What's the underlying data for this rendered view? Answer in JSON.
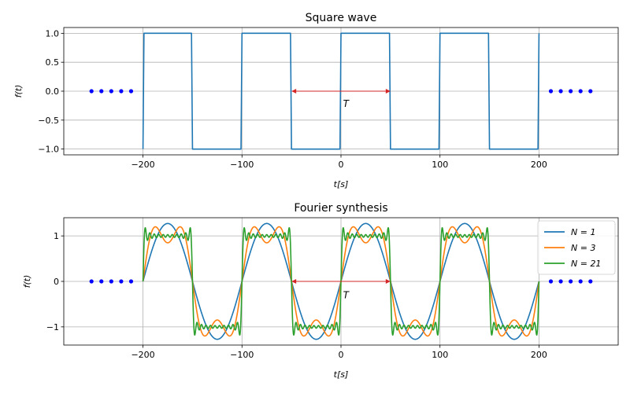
{
  "chart_data": [
    {
      "type": "line",
      "title": "Square wave",
      "xlabel": "t[s]",
      "ylabel": "f(t)",
      "xlim": [
        -280,
        280
      ],
      "ylim": [
        -1.1,
        1.1
      ],
      "xticks": [
        -200,
        -100,
        0,
        100,
        200
      ],
      "xtick_labels": [
        "−200",
        "−100",
        "0",
        "100",
        "200"
      ],
      "yticks": [
        -1.0,
        -0.5,
        0.0,
        0.5,
        1.0
      ],
      "ytick_labels": [
        "−1.0",
        "−0.5",
        "0.0",
        "0.5",
        "1.0"
      ],
      "grid": true,
      "series": [
        {
          "color": "#1f77b4",
          "x": [
            -200,
            -199,
            -151,
            -150,
            -101,
            -100,
            -51,
            -50,
            -1,
            0,
            49,
            50,
            99,
            100,
            149,
            150,
            199,
            200
          ],
          "y": [
            -1,
            1,
            1,
            -1,
            -1,
            1,
            1,
            -1,
            -1,
            1,
            1,
            -1,
            -1,
            1,
            1,
            -1,
            -1,
            1
          ]
        }
      ],
      "dots": {
        "color": "#0000ff",
        "x": [
          -252,
          -242,
          -232,
          -222,
          -212,
          212,
          222,
          232,
          242,
          252
        ],
        "y": [
          0,
          0,
          0,
          0,
          0,
          0,
          0,
          0,
          0,
          0
        ]
      },
      "annotation": {
        "text": "T",
        "x1": -50,
        "x2": 50,
        "y": 0,
        "color": "#d62728",
        "label_x": 5,
        "label_y": -0.22
      }
    },
    {
      "type": "line",
      "title": "Fourier synthesis",
      "xlabel": "t[s]",
      "ylabel": "f(t)",
      "xlim": [
        -280,
        280
      ],
      "ylim": [
        -1.4,
        1.4
      ],
      "xticks": [
        -200,
        -100,
        0,
        100,
        200
      ],
      "xtick_labels": [
        "−200",
        "−100",
        "0",
        "100",
        "200"
      ],
      "yticks": [
        -1,
        0,
        1
      ],
      "ytick_labels": [
        "−1",
        "0",
        "1"
      ],
      "grid": true,
      "legend": "top-right",
      "period": 100,
      "t_range": [
        -200,
        200
      ],
      "series": [
        {
          "name": "N = 1",
          "color": "#1f77b4",
          "harmonics": 1
        },
        {
          "name": "N = 3",
          "color": "#ff7f0e",
          "harmonics": 3
        },
        {
          "name": "N = 21",
          "color": "#2ca02c",
          "harmonics": 21
        }
      ],
      "dots": {
        "color": "#0000ff",
        "x": [
          -252,
          -242,
          -232,
          -222,
          -212,
          212,
          222,
          232,
          242,
          252
        ],
        "y": [
          0,
          0,
          0,
          0,
          0,
          0,
          0,
          0,
          0,
          0
        ]
      },
      "annotation": {
        "text": "T",
        "x1": -50,
        "x2": 50,
        "y": 0,
        "color": "#d62728",
        "label_x": 5,
        "label_y": -0.3
      }
    }
  ]
}
